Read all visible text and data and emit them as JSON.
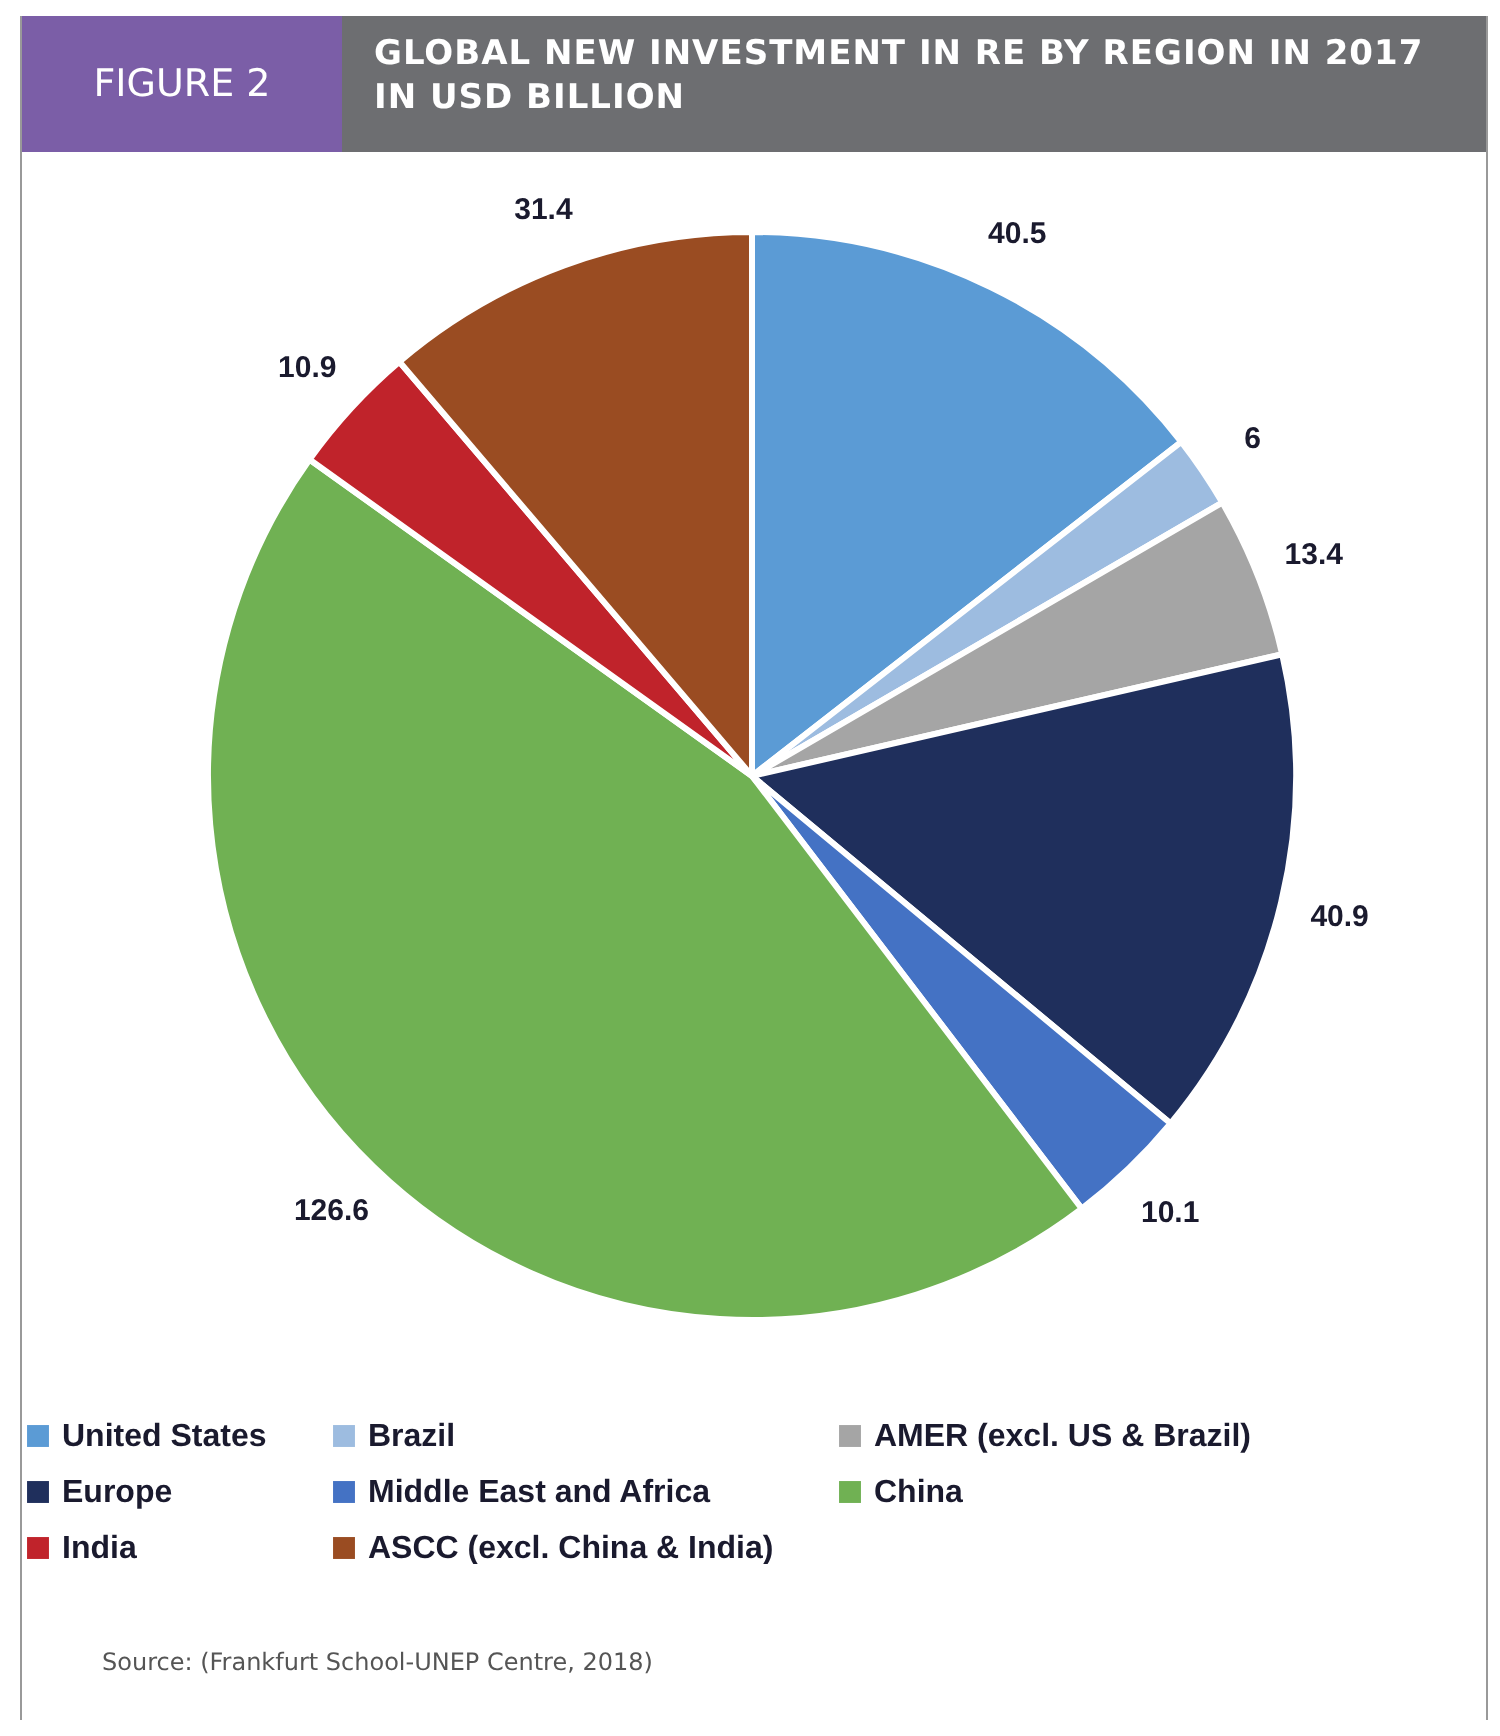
{
  "chart_data": {
    "type": "pie",
    "title": "FIGURE 2",
    "subtitle": "GLOBAL NEW INVESTMENT IN RE BY REGION IN 2017 IN USD BILLION",
    "categories": [
      "United States",
      "Brazil",
      "AMER (excl. US & Brazil)",
      "Europe",
      "Middle East and Africa",
      "China",
      "India",
      "ASCC (excl. China & India)"
    ],
    "values": [
      40.5,
      6,
      13.4,
      40.9,
      10.1,
      126.6,
      10.9,
      31.4
    ],
    "colors": [
      "#5b9bd5",
      "#9dbce0",
      "#a5a5a5",
      "#1f2f5c",
      "#4472c4",
      "#70b153",
      "#c0232b",
      "#9a4c22"
    ],
    "data_labels": true,
    "legend": "bottom",
    "annotations": [
      "Source: (Frankfurt School-UNEP Centre, 2018)"
    ]
  }
}
